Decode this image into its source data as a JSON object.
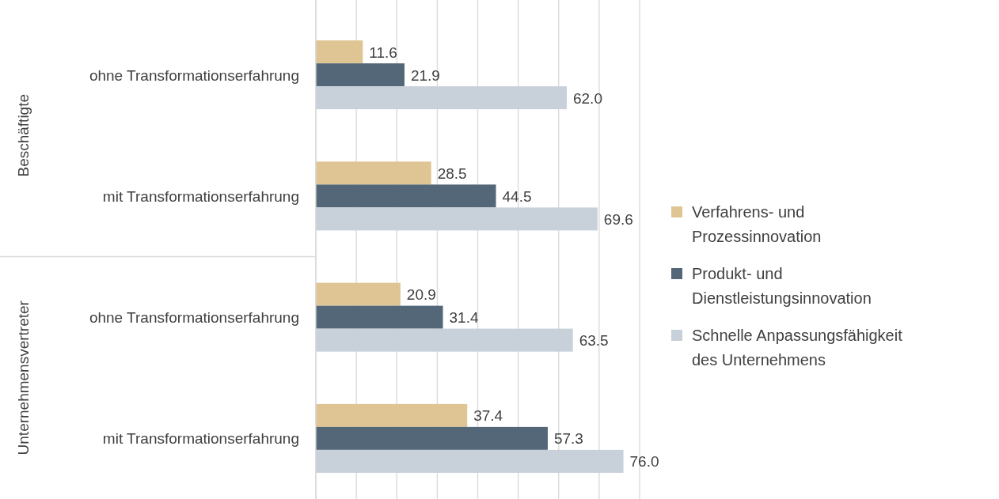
{
  "chart_data": {
    "type": "bar",
    "orientation": "horizontal",
    "categories": [
      "ohne Transformationserfahrung",
      "mit Transformationserfahrung",
      "ohne Transformationserfahrung",
      "mit Transformationserfahrung"
    ],
    "annotations": [
      "Beschäftigte",
      "Unternehmensvertreter"
    ],
    "series": [
      {
        "name": "Verfahrens- und Prozessinnovation",
        "color": "#dfc494",
        "values": [
          11.6,
          28.5,
          20.9,
          37.4
        ],
        "value_labels": [
          "11.6",
          "28.5",
          "20.9",
          "37.4"
        ]
      },
      {
        "name": "Produkt- und Dienstleistungsinnovation",
        "color": "#546778",
        "values": [
          21.9,
          44.5,
          31.4,
          57.3
        ],
        "value_labels": [
          "21.9",
          "44.5",
          "31.4",
          "57.3"
        ]
      },
      {
        "name": "Schnelle Anpassungsfähigkeit des Unternehmens",
        "color": "#c8d0da",
        "values": [
          62,
          69.6,
          63.5,
          76
        ],
        "value_labels": [
          "62.0",
          "69.6",
          "63.5",
          "76.0"
        ]
      }
    ],
    "xlim": [
      0,
      80
    ],
    "xticks": [
      {
        "value": 0,
        "label": null
      },
      {
        "value": 10,
        "label": null
      },
      {
        "value": 20,
        "label": null
      },
      {
        "value": 30,
        "label": null
      },
      {
        "value": 40,
        "label": null
      },
      {
        "value": 50,
        "label": null
      },
      {
        "value": 60,
        "label": null
      },
      {
        "value": 70,
        "label": null
      },
      {
        "value": 80,
        "label": null
      }
    ],
    "tick_labels": "y",
    "grid": "x",
    "legend": "right"
  }
}
